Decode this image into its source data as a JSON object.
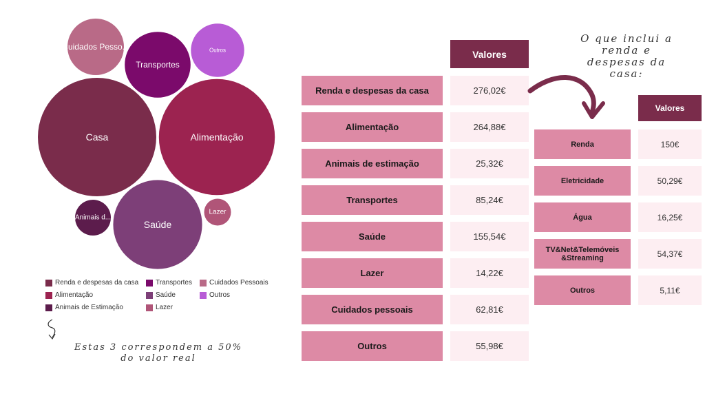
{
  "bubble_chart": {
    "type": "bubble",
    "bubbles": [
      {
        "label": "Cuidados Pesso...",
        "value": 62.81,
        "color": "#b96a87"
      },
      {
        "label": "Transportes",
        "value": 85.24,
        "color": "#7b0a6b"
      },
      {
        "label": "Outros",
        "value": 55.98,
        "color": "#b85cd6"
      },
      {
        "label": "Casa",
        "value": 276.02,
        "color": "#7a2c4b"
      },
      {
        "label": "Alimentação",
        "value": 264.88,
        "color": "#9c2350"
      },
      {
        "label": "Animais d...",
        "value": 25.32,
        "color": "#5c1c4c"
      },
      {
        "label": "Saúde",
        "value": 155.54,
        "color": "#7d3f78"
      },
      {
        "label": "Lazer",
        "value": 14.22,
        "color": "#b05578"
      }
    ],
    "legend": [
      {
        "label": "Renda e despesas da casa",
        "color": "#7a2c4b"
      },
      {
        "label": "Transportes",
        "color": "#7b0a6b"
      },
      {
        "label": "Cuidados Pessoais",
        "color": "#b96a87"
      },
      {
        "label": "Alimentação",
        "color": "#9c2350"
      },
      {
        "label": "Saúde",
        "color": "#7d3f78"
      },
      {
        "label": "Outros",
        "color": "#b85cd6"
      },
      {
        "label": "Animais de Estimação",
        "color": "#5c1c4c"
      },
      {
        "label": "Lazer",
        "color": "#b05578"
      }
    ]
  },
  "note_left": {
    "line1": "Estas 3 correspondem a 50%",
    "line2": "do valor real"
  },
  "note_right": {
    "line1": "O que inclui a",
    "line2": "renda e",
    "line3": "despesas da",
    "line4": "casa:"
  },
  "chart_data": [
    {
      "type": "table",
      "header": "Valores",
      "rows": [
        {
          "label": "Renda e despesas da casa",
          "value": "276,02€"
        },
        {
          "label": "Alimentação",
          "value": "264,88€"
        },
        {
          "label": "Animais de estimação",
          "value": "25,32€"
        },
        {
          "label": "Transportes",
          "value": "85,24€"
        },
        {
          "label": "Saúde",
          "value": "155,54€"
        },
        {
          "label": "Lazer",
          "value": "14,22€"
        },
        {
          "label": "Cuidados pessoais",
          "value": "62,81€"
        },
        {
          "label": "Outros",
          "value": "55,98€"
        }
      ]
    },
    {
      "type": "table",
      "header": "Valores",
      "rows": [
        {
          "label": "Renda",
          "value": "150€"
        },
        {
          "label": "Eletricidade",
          "value": "50,29€"
        },
        {
          "label": "Água",
          "value": "16,25€"
        },
        {
          "label": "TV&Net&Telemóveis &Streaming",
          "value": "54,37€"
        },
        {
          "label": "Outros",
          "value": "5,11€"
        }
      ]
    }
  ]
}
